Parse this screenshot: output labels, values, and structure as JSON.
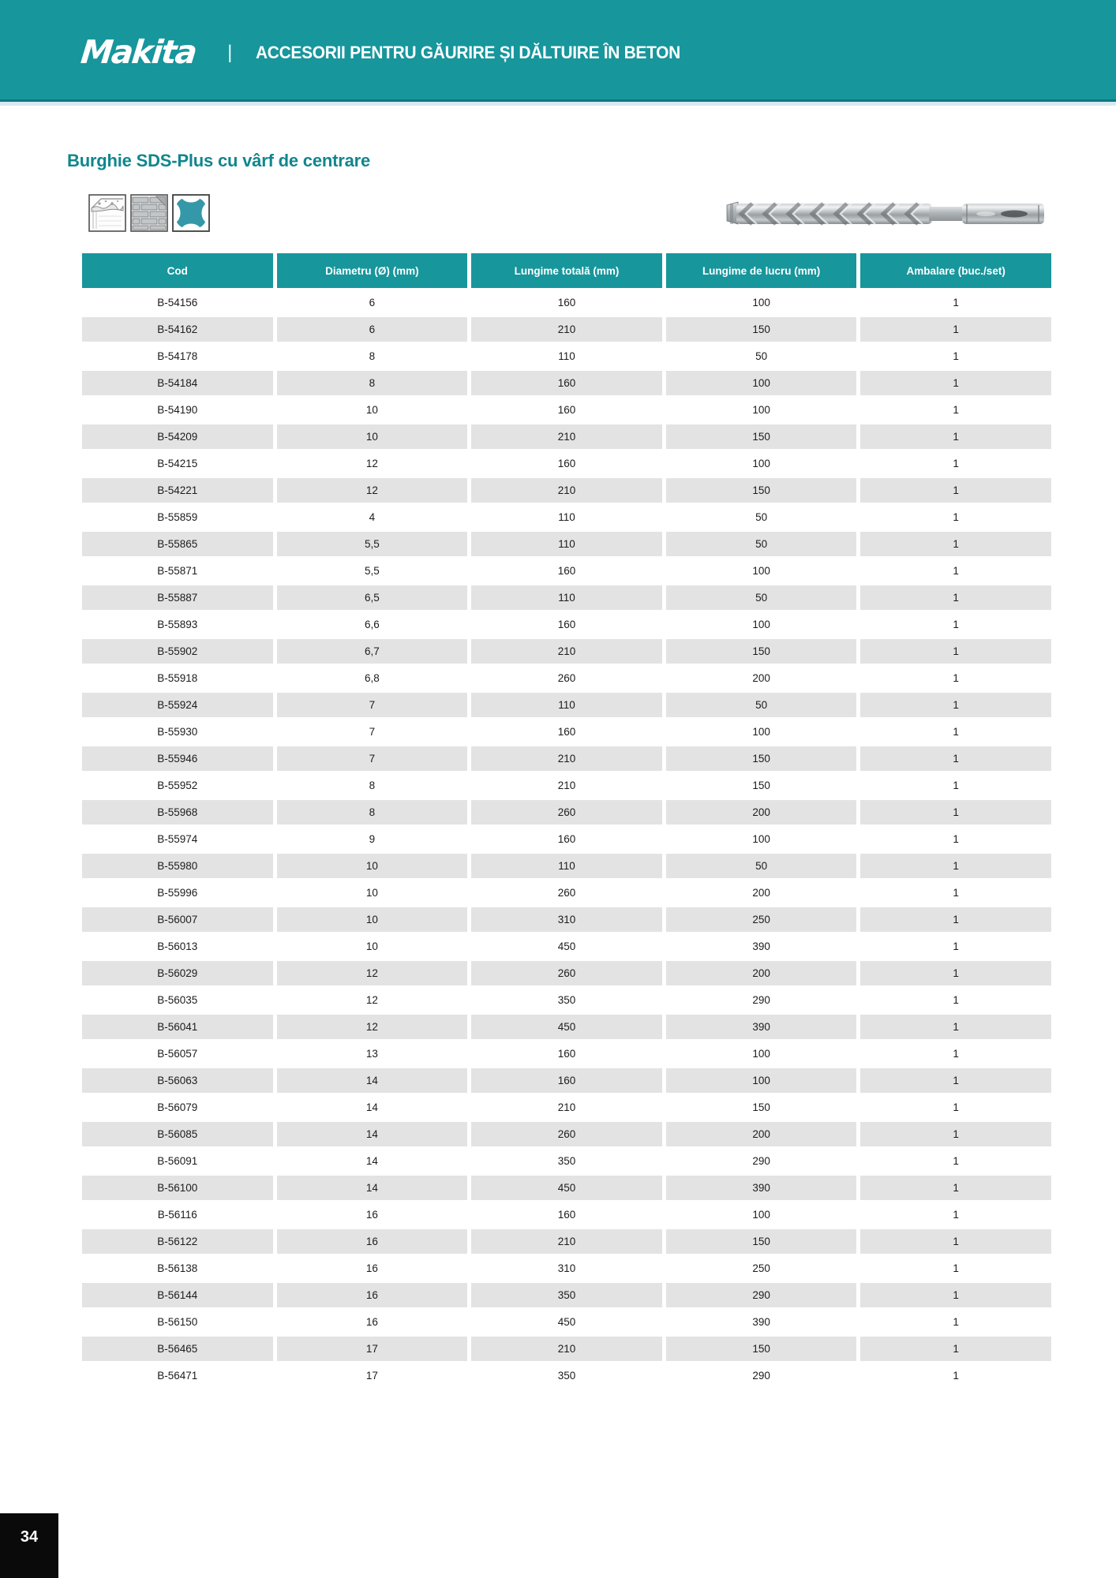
{
  "header": {
    "logo": "Makita",
    "separator": "|",
    "title": "ACCESORII PENTRU GĂURIRE ȘI DĂLTUIRE ÎN BETON"
  },
  "section": {
    "title": "Burghie SDS-Plus cu vârf de centrare"
  },
  "icons": {
    "concrete": "concrete-material-icon",
    "brick": "brick-material-icon",
    "sds_shank": "sds-plus-shank-icon",
    "accent_color": "#3598a8"
  },
  "product_image": {
    "name": "sds-plus-drill-bit-photo"
  },
  "table": {
    "columns": [
      "Cod",
      "Diametru (Ø) (mm)",
      "Lungime totală (mm)",
      "Lungime de lucru (mm)",
      "Ambalare (buc./set)"
    ],
    "rows": [
      [
        "B-54156",
        "6",
        "160",
        "100",
        "1"
      ],
      [
        "B-54162",
        "6",
        "210",
        "150",
        "1"
      ],
      [
        "B-54178",
        "8",
        "110",
        "50",
        "1"
      ],
      [
        "B-54184",
        "8",
        "160",
        "100",
        "1"
      ],
      [
        "B-54190",
        "10",
        "160",
        "100",
        "1"
      ],
      [
        "B-54209",
        "10",
        "210",
        "150",
        "1"
      ],
      [
        "B-54215",
        "12",
        "160",
        "100",
        "1"
      ],
      [
        "B-54221",
        "12",
        "210",
        "150",
        "1"
      ],
      [
        "B-55859",
        "4",
        "110",
        "50",
        "1"
      ],
      [
        "B-55865",
        "5,5",
        "110",
        "50",
        "1"
      ],
      [
        "B-55871",
        "5,5",
        "160",
        "100",
        "1"
      ],
      [
        "B-55887",
        "6,5",
        "110",
        "50",
        "1"
      ],
      [
        "B-55893",
        "6,6",
        "160",
        "100",
        "1"
      ],
      [
        "B-55902",
        "6,7",
        "210",
        "150",
        "1"
      ],
      [
        "B-55918",
        "6,8",
        "260",
        "200",
        "1"
      ],
      [
        "B-55924",
        "7",
        "110",
        "50",
        "1"
      ],
      [
        "B-55930",
        "7",
        "160",
        "100",
        "1"
      ],
      [
        "B-55946",
        "7",
        "210",
        "150",
        "1"
      ],
      [
        "B-55952",
        "8",
        "210",
        "150",
        "1"
      ],
      [
        "B-55968",
        "8",
        "260",
        "200",
        "1"
      ],
      [
        "B-55974",
        "9",
        "160",
        "100",
        "1"
      ],
      [
        "B-55980",
        "10",
        "110",
        "50",
        "1"
      ],
      [
        "B-55996",
        "10",
        "260",
        "200",
        "1"
      ],
      [
        "B-56007",
        "10",
        "310",
        "250",
        "1"
      ],
      [
        "B-56013",
        "10",
        "450",
        "390",
        "1"
      ],
      [
        "B-56029",
        "12",
        "260",
        "200",
        "1"
      ],
      [
        "B-56035",
        "12",
        "350",
        "290",
        "1"
      ],
      [
        "B-56041",
        "12",
        "450",
        "390",
        "1"
      ],
      [
        "B-56057",
        "13",
        "160",
        "100",
        "1"
      ],
      [
        "B-56063",
        "14",
        "160",
        "100",
        "1"
      ],
      [
        "B-56079",
        "14",
        "210",
        "150",
        "1"
      ],
      [
        "B-56085",
        "14",
        "260",
        "200",
        "1"
      ],
      [
        "B-56091",
        "14",
        "350",
        "290",
        "1"
      ],
      [
        "B-56100",
        "14",
        "450",
        "390",
        "1"
      ],
      [
        "B-56116",
        "16",
        "160",
        "100",
        "1"
      ],
      [
        "B-56122",
        "16",
        "210",
        "150",
        "1"
      ],
      [
        "B-56138",
        "16",
        "310",
        "250",
        "1"
      ],
      [
        "B-56144",
        "16",
        "350",
        "290",
        "1"
      ],
      [
        "B-56150",
        "16",
        "450",
        "390",
        "1"
      ],
      [
        "B-56465",
        "17",
        "210",
        "150",
        "1"
      ],
      [
        "B-56471",
        "17",
        "350",
        "290",
        "1"
      ]
    ]
  },
  "footer": {
    "page_number": "34"
  },
  "colors": {
    "teal": "#17969c",
    "section_title_teal": "#10868e",
    "row_alt_gray": "#e3e3e3",
    "page_num_bg": "#0a0a0a"
  }
}
